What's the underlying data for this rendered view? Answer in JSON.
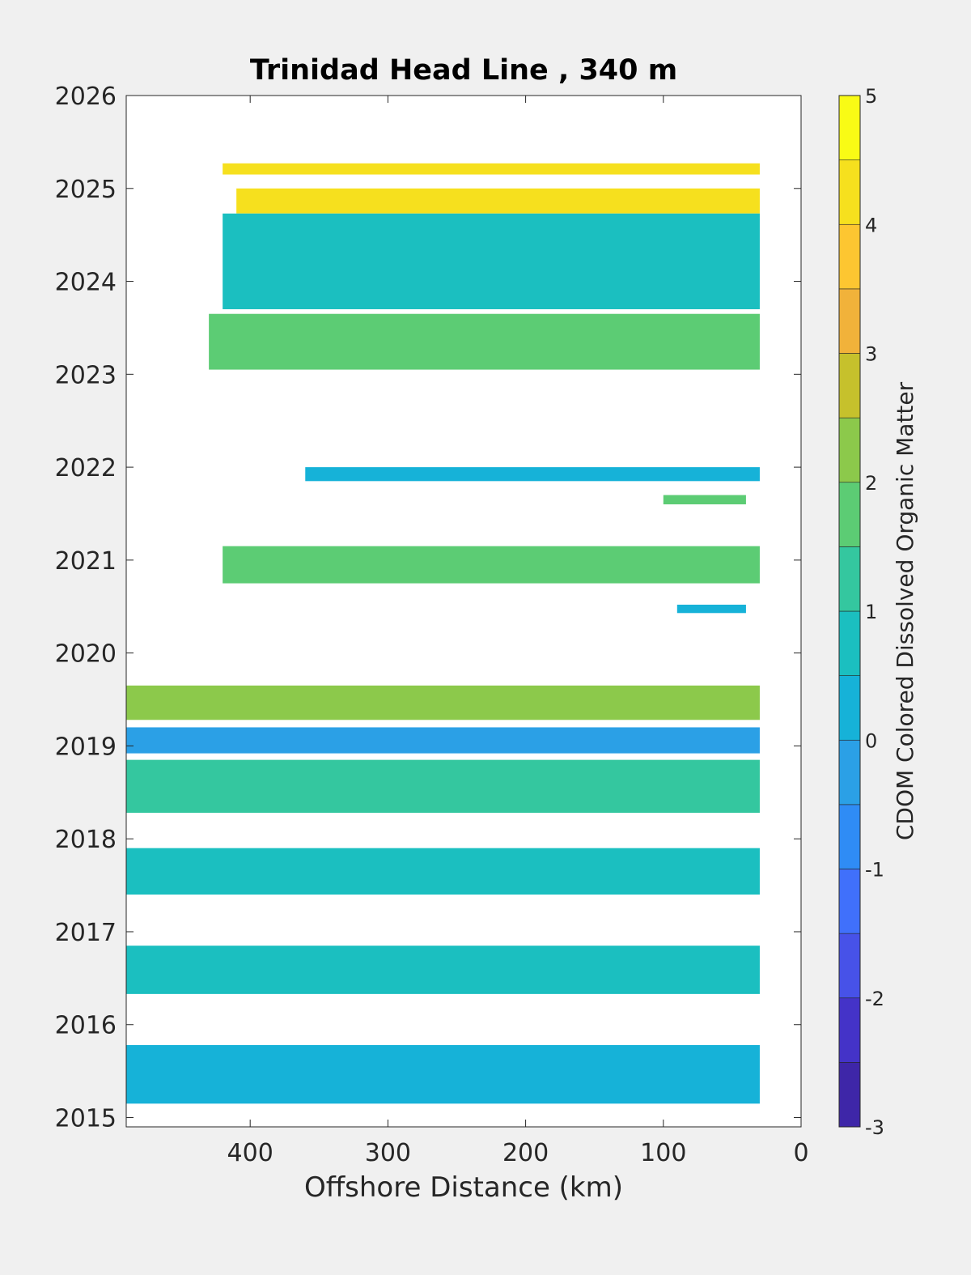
{
  "chart_data": {
    "type": "heatmap",
    "title": "Trinidad Head Line , 340 m",
    "xlabel": "Offshore Distance (km)",
    "ylabel": "",
    "xlim": [
      490,
      0
    ],
    "x_reversed": true,
    "ylim": [
      2014.9,
      2026
    ],
    "x_ticks": [
      "400",
      "300",
      "200",
      "100",
      "0"
    ],
    "x_tick_values": [
      400,
      300,
      200,
      100,
      0
    ],
    "y_ticks": [
      "2015",
      "2016",
      "2017",
      "2018",
      "2019",
      "2020",
      "2021",
      "2022",
      "2023",
      "2024",
      "2025",
      "2026"
    ],
    "y_tick_values": [
      2015,
      2016,
      2017,
      2018,
      2019,
      2020,
      2021,
      2022,
      2023,
      2024,
      2025,
      2026
    ],
    "colorbar": {
      "label": "CDOM Colored Dissolved Organic Matter",
      "levels": [
        -3,
        -2.5,
        -2,
        -1.5,
        -1,
        -0.5,
        0,
        0.5,
        1,
        1.5,
        2,
        2.5,
        3,
        3.5,
        4,
        4.5,
        5
      ],
      "tick_labels": [
        "5",
        "4",
        "3",
        "2",
        "1",
        "0",
        "-1",
        "-2",
        "-3"
      ],
      "tick_values": [
        5,
        4,
        3,
        2,
        1,
        0,
        -1,
        -2,
        -3
      ],
      "colors": [
        "#3e26a8",
        "#4433c8",
        "#4752e8",
        "#4070fb",
        "#2f8cf5",
        "#2ba0e6",
        "#16b2d8",
        "#1bbfc0",
        "#34c79f",
        "#5ccc74",
        "#8cc94b",
        "#c6c12c",
        "#f1b23a",
        "#fdc631",
        "#f6e01e",
        "#f9fb15"
      ]
    },
    "bands": [
      {
        "x_start": 420,
        "x_end": 30,
        "y_start": 2025.15,
        "y_end": 2025.27,
        "value": 4.3
      },
      {
        "x_start": 410,
        "x_end": 30,
        "y_start": 2024.73,
        "y_end": 2025.0,
        "value": 4.3
      },
      {
        "x_start": 420,
        "x_end": 30,
        "y_start": 2023.7,
        "y_end": 2024.73,
        "value": 0.8
      },
      {
        "x_start": 430,
        "x_end": 30,
        "y_start": 2023.05,
        "y_end": 2023.65,
        "value": 1.8
      },
      {
        "x_start": 360,
        "x_end": 30,
        "y_start": 2021.85,
        "y_end": 2022.0,
        "value": 0.3
      },
      {
        "x_start": 100,
        "x_end": 40,
        "y_start": 2021.6,
        "y_end": 2021.7,
        "value": 1.7
      },
      {
        "x_start": 420,
        "x_end": 30,
        "y_start": 2020.75,
        "y_end": 2021.15,
        "value": 1.8
      },
      {
        "x_start": 90,
        "x_end": 40,
        "y_start": 2020.43,
        "y_end": 2020.52,
        "value": 0.3
      },
      {
        "x_start": 490,
        "x_end": 30,
        "y_start": 2019.28,
        "y_end": 2019.65,
        "value": 2.2
      },
      {
        "x_start": 490,
        "x_end": 30,
        "y_start": 2018.92,
        "y_end": 2019.2,
        "value": -0.3
      },
      {
        "x_start": 490,
        "x_end": 30,
        "y_start": 2018.28,
        "y_end": 2018.85,
        "value": 1.3
      },
      {
        "x_start": 490,
        "x_end": 30,
        "y_start": 2017.4,
        "y_end": 2017.9,
        "value": 0.7
      },
      {
        "x_start": 490,
        "x_end": 30,
        "y_start": 2016.33,
        "y_end": 2016.85,
        "value": 0.8
      },
      {
        "x_start": 490,
        "x_end": 30,
        "y_start": 2015.15,
        "y_end": 2015.78,
        "value": 0.3
      }
    ]
  }
}
